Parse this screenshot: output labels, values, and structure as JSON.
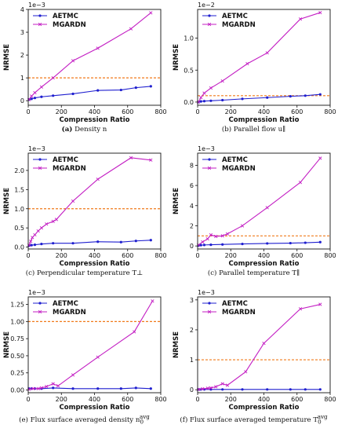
{
  "colors": {
    "aetmc": "#1f1fcf",
    "mgardn": "#c31ec3",
    "threshold": "#f07a1a"
  },
  "legend": [
    "AETMC",
    "MGARDN"
  ],
  "chart_data": [
    {
      "type": "line",
      "caption_label": "(a)",
      "caption_text": "Density n",
      "xlabel": "Compression Ratio",
      "ylabel": "NRMSE",
      "multiplier": "1e−3",
      "xlim": [
        0,
        800
      ],
      "ylim": [
        -0.2,
        4.0
      ],
      "xticks": [
        0,
        200,
        400,
        600,
        800
      ],
      "yticks": [
        0,
        1,
        2,
        3,
        4
      ],
      "ytick_labels": [
        "0",
        "1",
        "2",
        "3",
        "4"
      ],
      "threshold": 1.0,
      "grid": false,
      "legend_position": "top-left",
      "series": [
        {
          "name": "AETMC",
          "marker": "dot",
          "x": [
            5,
            20,
            40,
            80,
            150,
            270,
            420,
            560,
            650,
            740
          ],
          "y": [
            0.05,
            0.08,
            0.12,
            0.17,
            0.22,
            0.3,
            0.45,
            0.47,
            0.57,
            0.63
          ]
        },
        {
          "name": "MGARDN",
          "marker": "x",
          "x": [
            5,
            20,
            40,
            80,
            150,
            270,
            420,
            620,
            740
          ],
          "y": [
            0.05,
            0.2,
            0.35,
            0.6,
            1.0,
            1.75,
            2.3,
            3.15,
            3.85
          ]
        }
      ]
    },
    {
      "type": "line",
      "caption_label": "(b)",
      "caption_text": "Parallel flow u∥",
      "xlabel": "Compression Ratio",
      "ylabel": "NRMSE",
      "multiplier": "1e−2",
      "xlim": [
        0,
        800
      ],
      "ylim": [
        -0.05,
        1.45
      ],
      "xticks": [
        0,
        200,
        400,
        600,
        800
      ],
      "yticks": [
        0.0,
        0.5,
        1.0
      ],
      "ytick_labels": [
        "0.0",
        "0.5",
        "1.0"
      ],
      "threshold": 0.1,
      "grid": false,
      "legend_position": "top-left",
      "series": [
        {
          "name": "AETMC",
          "marker": "dot",
          "x": [
            5,
            20,
            40,
            80,
            150,
            270,
            420,
            560,
            650,
            740
          ],
          "y": [
            0.0,
            0.01,
            0.015,
            0.02,
            0.03,
            0.05,
            0.07,
            0.09,
            0.1,
            0.12
          ]
        },
        {
          "name": "MGARDN",
          "marker": "x",
          "x": [
            5,
            20,
            40,
            80,
            150,
            300,
            420,
            620,
            740
          ],
          "y": [
            0.0,
            0.07,
            0.14,
            0.22,
            0.33,
            0.6,
            0.77,
            1.3,
            1.4
          ]
        }
      ]
    },
    {
      "type": "line",
      "caption_label": "(c)",
      "caption_text": "Perpendicular temperature T⊥",
      "xlabel": "Compression Ratio",
      "ylabel": "NRMSE",
      "multiplier": "1e−3",
      "xlim": [
        0,
        800
      ],
      "ylim": [
        -0.05,
        2.45
      ],
      "xticks": [
        0,
        200,
        400,
        600,
        800
      ],
      "yticks": [
        0.0,
        0.5,
        1.0,
        1.5,
        2.0
      ],
      "ytick_labels": [
        "0.0",
        "0.5",
        "1.0",
        "1.5",
        "2.0"
      ],
      "threshold": 1.0,
      "grid": false,
      "legend_position": "top-left",
      "series": [
        {
          "name": "AETMC",
          "marker": "dot",
          "x": [
            5,
            20,
            40,
            80,
            150,
            270,
            420,
            560,
            650,
            740
          ],
          "y": [
            0.04,
            0.05,
            0.06,
            0.08,
            0.1,
            0.1,
            0.14,
            0.13,
            0.16,
            0.18
          ]
        },
        {
          "name": "MGARDN",
          "marker": "x",
          "x": [
            5,
            15,
            25,
            40,
            60,
            80,
            110,
            150,
            170,
            270,
            420,
            620,
            740
          ],
          "y": [
            0.05,
            0.15,
            0.25,
            0.32,
            0.42,
            0.5,
            0.6,
            0.67,
            0.72,
            1.2,
            1.77,
            2.33,
            2.27
          ]
        }
      ]
    },
    {
      "type": "line",
      "caption_label": "(c)",
      "caption_text": "Parallel temperature T∥",
      "xlabel": "Compression Ratio",
      "ylabel": "NRMSE",
      "multiplier": "1e−3",
      "xlim": [
        0,
        800
      ],
      "ylim": [
        -0.3,
        9.2
      ],
      "xticks": [
        0,
        200,
        400,
        600,
        800
      ],
      "yticks": [
        0,
        2,
        4,
        6,
        8
      ],
      "ytick_labels": [
        "0",
        "2",
        "4",
        "6",
        "8"
      ],
      "threshold": 1.0,
      "grid": false,
      "legend_position": "top-left",
      "series": [
        {
          "name": "AETMC",
          "marker": "dot",
          "x": [
            5,
            20,
            40,
            80,
            150,
            270,
            420,
            560,
            650,
            740
          ],
          "y": [
            0.05,
            0.08,
            0.1,
            0.12,
            0.15,
            0.2,
            0.25,
            0.28,
            0.32,
            0.38
          ]
        },
        {
          "name": "MGARDN",
          "marker": "x",
          "x": [
            5,
            30,
            60,
            80,
            110,
            150,
            180,
            270,
            420,
            620,
            740
          ],
          "y": [
            0.1,
            0.4,
            0.7,
            1.1,
            0.95,
            1.0,
            1.2,
            2.0,
            3.8,
            6.3,
            8.7
          ]
        }
      ]
    },
    {
      "type": "line",
      "caption_label": "(e)",
      "caption_text": "Flux surface averaged density n",
      "sub": "0",
      "sup": "avg",
      "xlabel": "Compression Ratio",
      "ylabel": "NRMSE",
      "multiplier": "1e−3",
      "xlim": [
        0,
        800
      ],
      "ylim": [
        -0.04,
        1.36
      ],
      "xticks": [
        0,
        200,
        400,
        600,
        800
      ],
      "yticks": [
        0.0,
        0.25,
        0.5,
        0.75,
        1.0,
        1.25
      ],
      "ytick_labels": [
        "0.00",
        "0.25",
        "0.50",
        "0.75",
        "1.00",
        "1.25"
      ],
      "threshold": 1.0,
      "grid": false,
      "legend_position": "top-left",
      "series": [
        {
          "name": "AETMC",
          "marker": "dot",
          "x": [
            5,
            20,
            40,
            80,
            150,
            270,
            420,
            560,
            650,
            740
          ],
          "y": [
            0.02,
            0.02,
            0.02,
            0.02,
            0.03,
            0.02,
            0.02,
            0.02,
            0.03,
            0.02
          ]
        },
        {
          "name": "MGARDN",
          "marker": "x",
          "x": [
            5,
            30,
            60,
            80,
            110,
            150,
            180,
            270,
            420,
            640,
            750
          ],
          "y": [
            0.01,
            0.02,
            0.02,
            0.03,
            0.05,
            0.09,
            0.06,
            0.22,
            0.48,
            0.85,
            1.3
          ]
        }
      ]
    },
    {
      "type": "line",
      "caption_label": "(f)",
      "caption_text": "Flux surface averaged temperature T",
      "sub": "0",
      "sup": "avg",
      "xlabel": "Compression Ratio",
      "ylabel": "NRMSE",
      "multiplier": "1e−3",
      "xlim": [
        0,
        800
      ],
      "ylim": [
        -0.1,
        3.1
      ],
      "xticks": [
        0,
        200,
        400,
        600,
        800
      ],
      "yticks": [
        0,
        1,
        2,
        3
      ],
      "ytick_labels": [
        "0",
        "1",
        "2",
        "3"
      ],
      "threshold": 1.0,
      "grid": false,
      "legend_position": "top-left",
      "series": [
        {
          "name": "AETMC",
          "marker": "dot",
          "x": [
            5,
            20,
            40,
            80,
            150,
            270,
            420,
            560,
            650,
            740
          ],
          "y": [
            0.01,
            0.01,
            0.01,
            0.01,
            0.01,
            0.01,
            0.01,
            0.01,
            0.01,
            0.01
          ]
        },
        {
          "name": "MGARDN",
          "marker": "x",
          "x": [
            5,
            30,
            60,
            80,
            110,
            150,
            180,
            290,
            400,
            620,
            740
          ],
          "y": [
            0.01,
            0.03,
            0.05,
            0.06,
            0.1,
            0.2,
            0.15,
            0.6,
            1.55,
            2.7,
            2.85
          ]
        }
      ]
    }
  ]
}
